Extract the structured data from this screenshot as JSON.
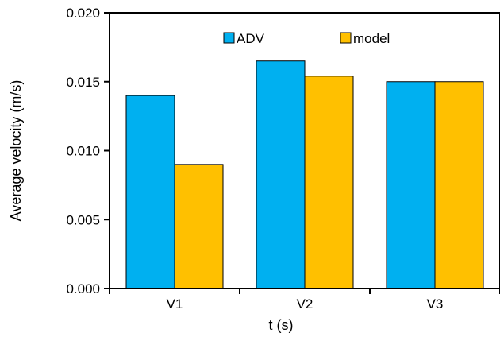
{
  "chart_data": {
    "type": "bar",
    "title": "",
    "xlabel": "t (s)",
    "ylabel": "Average velocity (m/s)",
    "categories": [
      "V1",
      "V2",
      "V3"
    ],
    "series": [
      {
        "name": "ADV",
        "color": "#00B0F0",
        "values": [
          0.014,
          0.0165,
          0.015
        ]
      },
      {
        "name": "model",
        "color": "#FFC000",
        "values": [
          0.009,
          0.0154,
          0.015
        ]
      }
    ],
    "ylim": [
      0,
      0.02
    ],
    "yticks": [
      "0.000",
      "0.005",
      "0.010",
      "0.015",
      "0.020"
    ],
    "grid": false,
    "legend_position": "top"
  }
}
